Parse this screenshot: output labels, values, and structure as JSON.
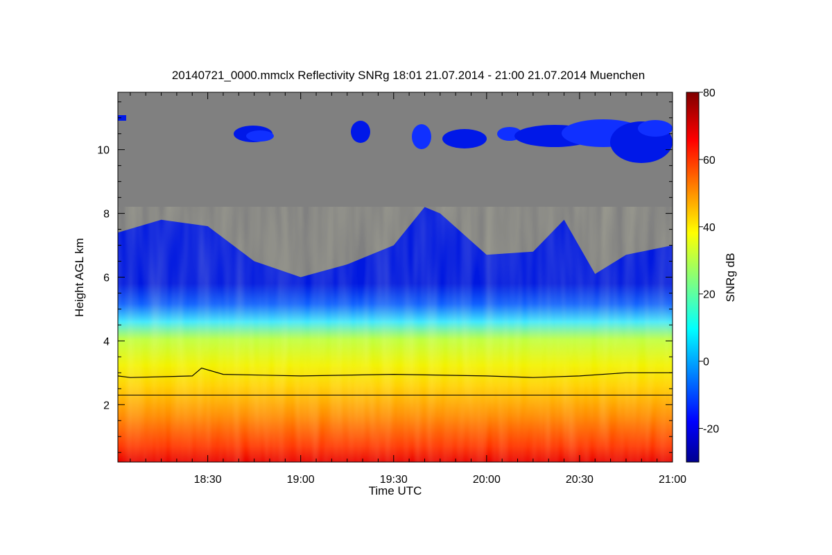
{
  "chart_data": {
    "type": "heatmap",
    "title": "20140721_0000.mmclx Reflectivity SNRg   18:01 21.07.2014 - 21:00 21.07.2014 Muenchen",
    "xlabel": "Time UTC",
    "ylabel": "Height AGL km",
    "x_range": [
      "18:01",
      "21:00"
    ],
    "y_range_km": [
      0.2,
      11.8
    ],
    "x_ticks": [
      "18:30",
      "19:00",
      "19:30",
      "20:00",
      "20:30",
      "21:00"
    ],
    "y_ticks": [
      2,
      4,
      6,
      8,
      10
    ],
    "colorbar": {
      "label": "SNRg dB",
      "range": [
        -30,
        80
      ],
      "ticks": [
        -20,
        0,
        20,
        40,
        60,
        80
      ],
      "colormap": "jet"
    },
    "no_data_color": "#808080",
    "cloud_top_profile_km": [
      {
        "time": "18:01",
        "top_km": 7.4
      },
      {
        "time": "18:15",
        "top_km": 7.8
      },
      {
        "time": "18:30",
        "top_km": 7.6
      },
      {
        "time": "18:45",
        "top_km": 6.5
      },
      {
        "time": "19:00",
        "top_km": 6.0
      },
      {
        "time": "19:15",
        "top_km": 6.4
      },
      {
        "time": "19:30",
        "top_km": 7.0
      },
      {
        "time": "19:40",
        "top_km": 8.2
      },
      {
        "time": "19:45",
        "top_km": 8.0
      },
      {
        "time": "20:00",
        "top_km": 6.7
      },
      {
        "time": "20:15",
        "top_km": 6.8
      },
      {
        "time": "20:25",
        "top_km": 7.8
      },
      {
        "time": "20:35",
        "top_km": 6.1
      },
      {
        "time": "20:45",
        "top_km": 6.7
      },
      {
        "time": "21:00",
        "top_km": 7.0
      }
    ],
    "overlay_lines": [
      {
        "kind": "variable-line",
        "points_km": [
          {
            "time": "18:01",
            "h": 2.9
          },
          {
            "time": "18:05",
            "h": 2.85
          },
          {
            "time": "18:25",
            "h": 2.9
          },
          {
            "time": "18:28",
            "h": 3.15
          },
          {
            "time": "18:35",
            "h": 2.95
          },
          {
            "time": "19:00",
            "h": 2.9
          },
          {
            "time": "19:30",
            "h": 2.95
          },
          {
            "time": "20:00",
            "h": 2.9
          },
          {
            "time": "20:15",
            "h": 2.85
          },
          {
            "time": "20:30",
            "h": 2.9
          },
          {
            "time": "20:45",
            "h": 3.0
          },
          {
            "time": "21:00",
            "h": 3.0
          }
        ]
      },
      {
        "kind": "horizontal-line",
        "h": 2.3
      }
    ]
  }
}
